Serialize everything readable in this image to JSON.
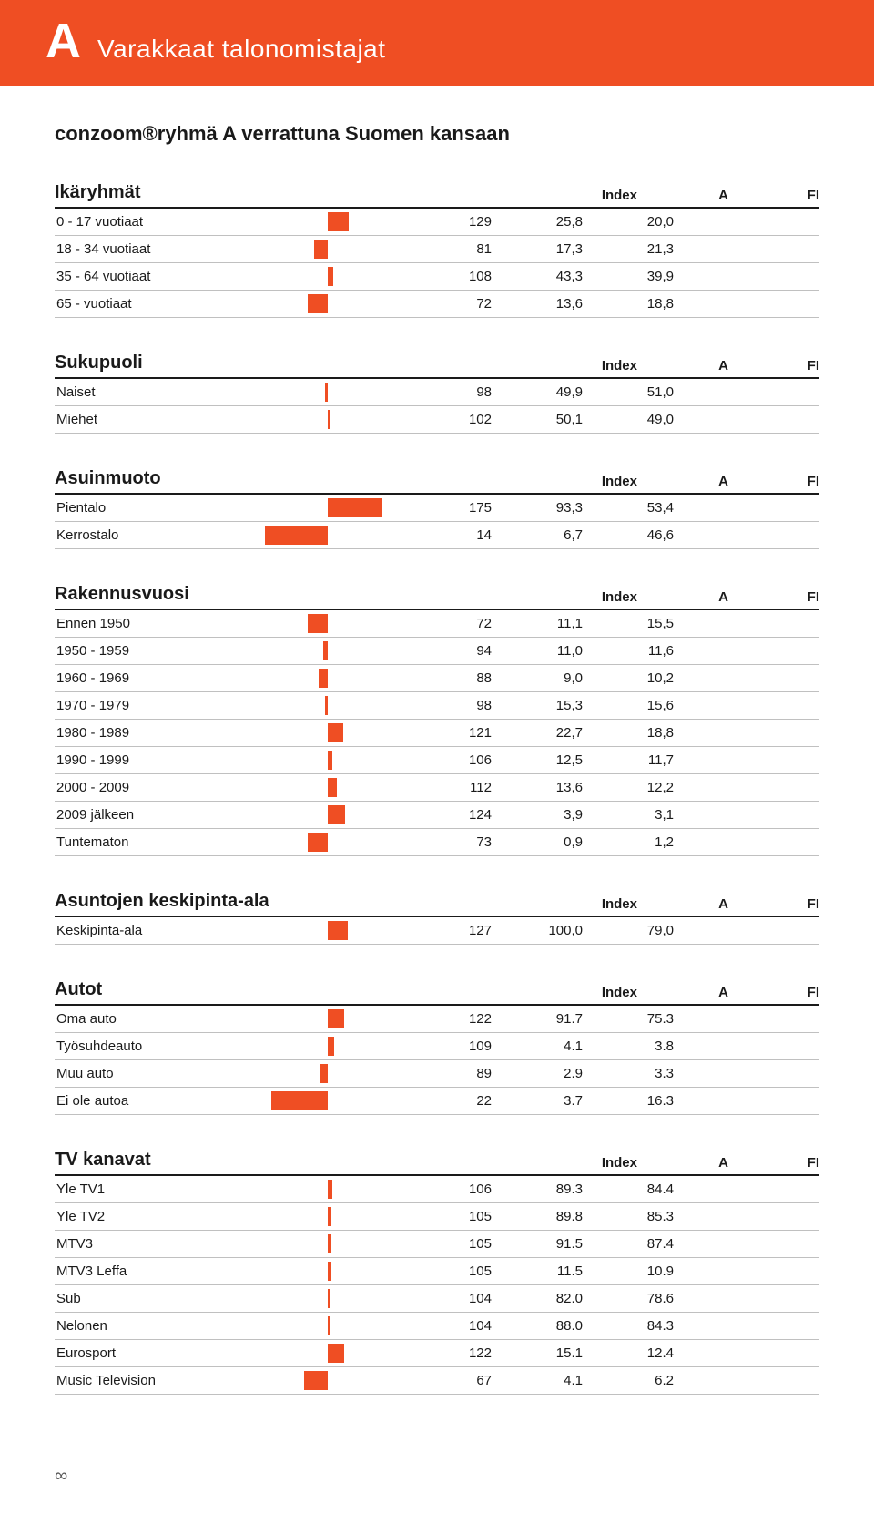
{
  "colors": {
    "accent": "#ef4e23",
    "text": "#1a1a1a",
    "row_border": "#c0c0c0",
    "background": "#ffffff"
  },
  "header": {
    "letter": "A",
    "title": "Varakkaat talonomistajat"
  },
  "subtitle": "conzoom®ryhmä A verrattuna Suomen kansaan",
  "column_labels": {
    "index": "Index",
    "a": "A",
    "fi": "FI"
  },
  "chart": {
    "baseline": 100,
    "max_deviation": 100,
    "bar_color": "#ef4e23"
  },
  "sections": [
    {
      "title": "Ikäryhmät",
      "rows": [
        {
          "label": "0 - 17 vuotiaat",
          "index": 129,
          "a": "25,8",
          "fi": "20,0"
        },
        {
          "label": "18 - 34 vuotiaat",
          "index": 81,
          "a": "17,3",
          "fi": "21,3"
        },
        {
          "label": "35 - 64 vuotiaat",
          "index": 108,
          "a": "43,3",
          "fi": "39,9"
        },
        {
          "label": "65 -  vuotiaat",
          "index": 72,
          "a": "13,6",
          "fi": "18,8"
        }
      ]
    },
    {
      "title": "Sukupuoli",
      "rows": [
        {
          "label": "Naiset",
          "index": 98,
          "a": "49,9",
          "fi": "51,0"
        },
        {
          "label": "Miehet",
          "index": 102,
          "a": "50,1",
          "fi": "49,0"
        }
      ]
    },
    {
      "title": "Asuinmuoto",
      "rows": [
        {
          "label": "Pientalo",
          "index": 175,
          "a": "93,3",
          "fi": "53,4"
        },
        {
          "label": "Kerrostalo",
          "index": 14,
          "a": "6,7",
          "fi": "46,6"
        }
      ]
    },
    {
      "title": "Rakennusvuosi",
      "rows": [
        {
          "label": "Ennen 1950",
          "index": 72,
          "a": "11,1",
          "fi": "15,5"
        },
        {
          "label": "1950 - 1959",
          "index": 94,
          "a": "11,0",
          "fi": "11,6"
        },
        {
          "label": "1960 - 1969",
          "index": 88,
          "a": "9,0",
          "fi": "10,2"
        },
        {
          "label": "1970 - 1979",
          "index": 98,
          "a": "15,3",
          "fi": "15,6"
        },
        {
          "label": "1980 - 1989",
          "index": 121,
          "a": "22,7",
          "fi": "18,8"
        },
        {
          "label": "1990 - 1999",
          "index": 106,
          "a": "12,5",
          "fi": "11,7"
        },
        {
          "label": "2000 - 2009",
          "index": 112,
          "a": "13,6",
          "fi": "12,2"
        },
        {
          "label": "2009 jälkeen",
          "index": 124,
          "a": "3,9",
          "fi": "3,1"
        },
        {
          "label": "Tuntematon",
          "index": 73,
          "a": "0,9",
          "fi": "1,2"
        }
      ]
    },
    {
      "title": "Asuntojen keskipinta-ala",
      "rows": [
        {
          "label": "Keskipinta-ala",
          "index": 127,
          "a": "100,0",
          "fi": "79,0"
        }
      ]
    },
    {
      "title": "Autot",
      "rows": [
        {
          "label": "Oma auto",
          "index": 122,
          "a": "91.7",
          "fi": "75.3"
        },
        {
          "label": "Työsuhdeauto",
          "index": 109,
          "a": "4.1",
          "fi": "3.8"
        },
        {
          "label": "Muu auto",
          "index": 89,
          "a": "2.9",
          "fi": "3.3"
        },
        {
          "label": "Ei ole autoa",
          "index": 22,
          "a": "3.7",
          "fi": "16.3"
        }
      ]
    },
    {
      "title": "TV kanavat",
      "rows": [
        {
          "label": "Yle TV1",
          "index": 106,
          "a": "89.3",
          "fi": "84.4"
        },
        {
          "label": "Yle TV2",
          "index": 105,
          "a": "89.8",
          "fi": "85.3"
        },
        {
          "label": "MTV3",
          "index": 105,
          "a": "91.5",
          "fi": "87.4"
        },
        {
          "label": "MTV3 Leffa",
          "index": 105,
          "a": "11.5",
          "fi": "10.9"
        },
        {
          "label": "Sub",
          "index": 104,
          "a": "82.0",
          "fi": "78.6"
        },
        {
          "label": "Nelonen",
          "index": 104,
          "a": "88.0",
          "fi": "84.3"
        },
        {
          "label": "Eurosport",
          "index": 122,
          "a": "15.1",
          "fi": "12.4"
        },
        {
          "label": "Music Television",
          "index": 67,
          "a": "4.1",
          "fi": "6.2"
        }
      ]
    }
  ],
  "page_number": "∞"
}
